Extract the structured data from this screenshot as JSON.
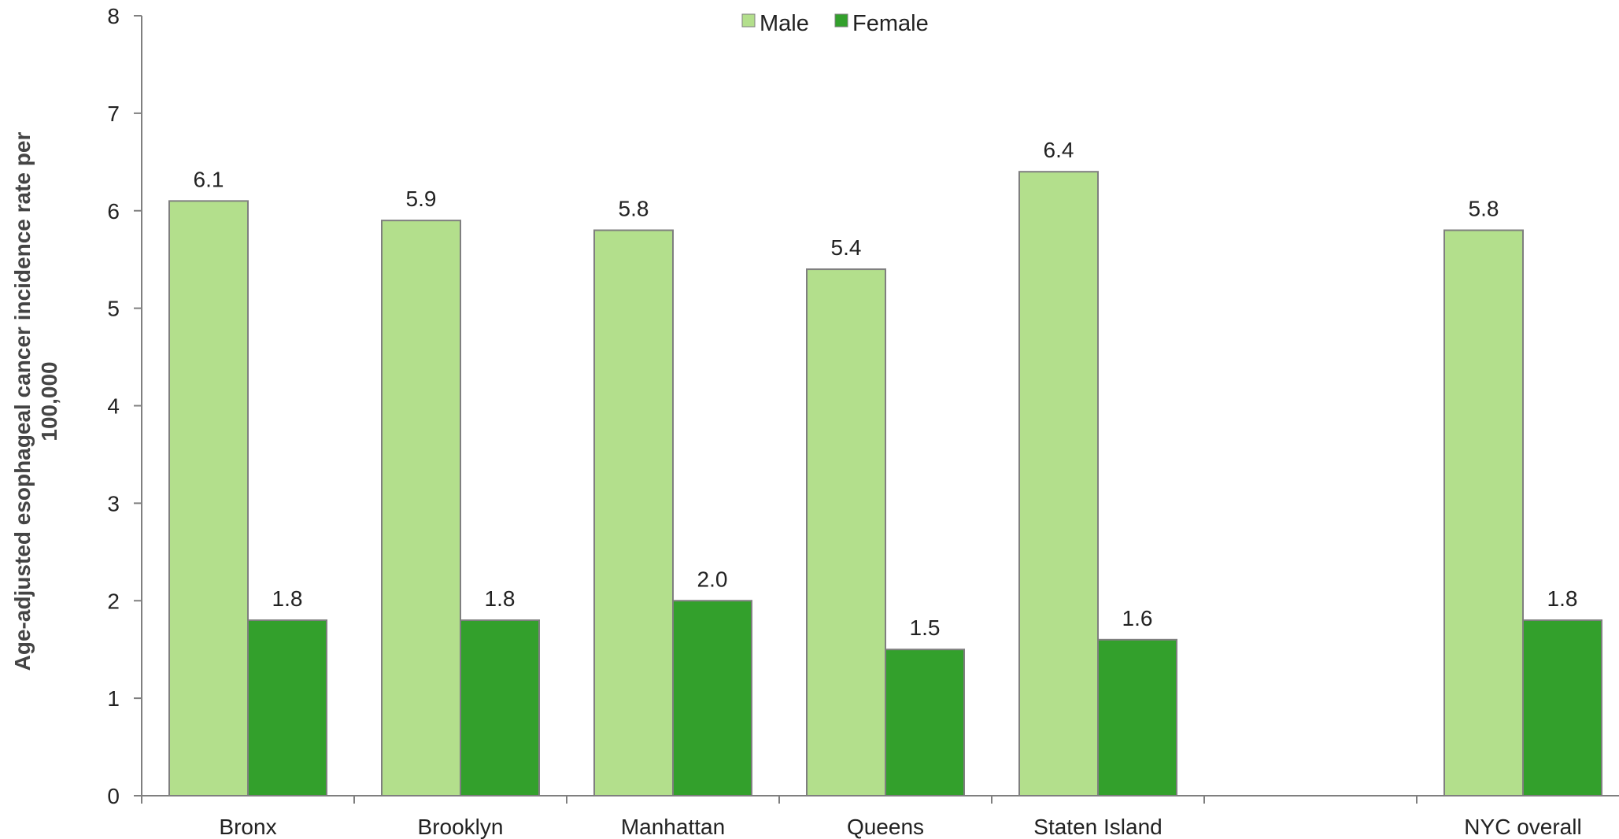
{
  "chart_data": {
    "type": "bar",
    "categories": [
      "Bronx",
      "Brooklyn",
      "Manhattan",
      "Queens",
      "Staten Island",
      "",
      "NYC overall"
    ],
    "series": [
      {
        "name": "Male",
        "color": "#b3df8c",
        "values": [
          6.1,
          5.9,
          5.8,
          5.4,
          6.4,
          null,
          5.8
        ],
        "labels": [
          "6.1",
          "5.9",
          "5.8",
          "5.4",
          "6.4",
          "",
          "5.8"
        ]
      },
      {
        "name": "Female",
        "color": "#33a02c",
        "values": [
          1.8,
          1.8,
          2.0,
          1.5,
          1.6,
          null,
          1.8
        ],
        "labels": [
          "1.8",
          "1.8",
          "2.0",
          "1.5",
          "1.6",
          "",
          "1.8"
        ]
      }
    ],
    "ylabel_lines": [
      "Age-adjusted esophageal cancer incidence rate per",
      "100,000"
    ],
    "ylim": [
      0,
      8
    ],
    "yticks": [
      "0",
      "1",
      "2",
      "3",
      "4",
      "5",
      "6",
      "7",
      "8"
    ],
    "grid": false,
    "legend_position": "top-center",
    "bar_stroke_color": "#7f7f7f",
    "axis_color": "#7f7f7f"
  }
}
